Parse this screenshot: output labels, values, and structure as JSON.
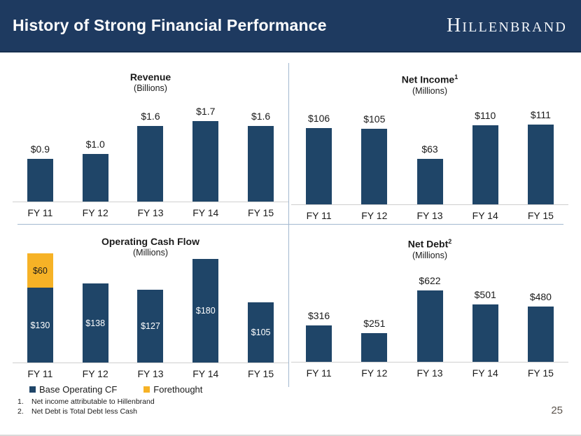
{
  "header": {
    "title": "History of Strong Financial Performance",
    "logo_first": "H",
    "logo_rest": "ILLENBRAND"
  },
  "colors": {
    "header_bg": "#1e3a60",
    "bar_blue": "#1f4568",
    "bar_gold": "#f6b226",
    "divider": "#a3b8d0"
  },
  "chart_data": [
    {
      "id": "revenue",
      "type": "bar",
      "title": "Revenue",
      "title_sup": "",
      "subtitle": "(Billions)",
      "categories": [
        "FY 11",
        "FY 12",
        "FY 13",
        "FY 14",
        "FY 15"
      ],
      "values": [
        0.9,
        1.0,
        1.6,
        1.7,
        1.6
      ],
      "labels": [
        "$0.9",
        "$1.0",
        "$1.6",
        "$1.7",
        "$1.6"
      ],
      "label_position": "above",
      "ylim": [
        0,
        1.7
      ],
      "grid": false,
      "legend_position": "none"
    },
    {
      "id": "net-income",
      "type": "bar",
      "title": "Net Income",
      "title_sup": "1",
      "subtitle": "(Millions)",
      "categories": [
        "FY 11",
        "FY 12",
        "FY 13",
        "FY 14",
        "FY 15"
      ],
      "values": [
        106,
        105,
        63,
        110,
        111
      ],
      "labels": [
        "$106",
        "$105",
        "$63",
        "$110",
        "$111"
      ],
      "label_position": "above",
      "ylim": [
        0,
        111
      ],
      "grid": false,
      "legend_position": "none"
    },
    {
      "id": "operating-cash-flow",
      "type": "stacked-bar",
      "title": "Operating Cash Flow",
      "title_sup": "",
      "subtitle": "(Millions)",
      "categories": [
        "FY 11",
        "FY 12",
        "FY 13",
        "FY 14",
        "FY 15"
      ],
      "series": [
        {
          "name": "Base Operating CF",
          "color_key": "blue",
          "values": [
            130,
            138,
            127,
            180,
            105
          ],
          "labels": [
            "$130",
            "$138",
            "$127",
            "$180",
            "$105"
          ]
        },
        {
          "name": "Forethought",
          "color_key": "gold",
          "values": [
            60,
            0,
            0,
            0,
            0
          ],
          "labels": [
            "$60",
            "",
            "",
            "",
            ""
          ]
        }
      ],
      "label_position": "inside",
      "ylim": [
        0,
        190
      ],
      "grid": false,
      "legend_position": "bottom-left",
      "legend": [
        {
          "label": "Base Operating CF",
          "color_key": "blue"
        },
        {
          "label": "Forethought",
          "color_key": "gold"
        }
      ]
    },
    {
      "id": "net-debt",
      "type": "bar",
      "title": "Net Debt",
      "title_sup": "2",
      "subtitle": "(Millions)",
      "categories": [
        "FY 11",
        "FY 12",
        "FY 13",
        "FY 14",
        "FY 15"
      ],
      "values": [
        316,
        251,
        622,
        501,
        480
      ],
      "labels": [
        "$316",
        "$251",
        "$622",
        "$501",
        "$480"
      ],
      "label_position": "above",
      "ylim": [
        0,
        622
      ],
      "grid": false,
      "legend_position": "none"
    }
  ],
  "footnotes": [
    {
      "num": "1.",
      "text": "Net income attributable to Hillenbrand"
    },
    {
      "num": "2.",
      "text": "Net Debt is Total Debt less Cash"
    }
  ],
  "page_number": "25"
}
